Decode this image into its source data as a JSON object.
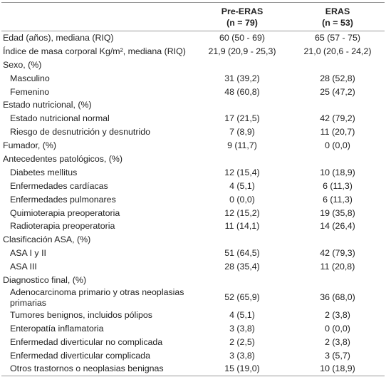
{
  "table": {
    "columns": [
      {
        "name": "Pre-ERAS",
        "n": "(n = 79)"
      },
      {
        "name": "ERAS",
        "n": "(n = 53)"
      }
    ],
    "rows": [
      {
        "label": "Edad (años), mediana (RIQ)",
        "values": [
          "60 (50 - 69)",
          "65 (57 - 75)"
        ]
      },
      {
        "label": "Índice de masa corporal Kg/m², mediana (RIQ)",
        "values": [
          "21,9 (20,9 - 25,3)",
          "21,0 (20,6 - 24,2)"
        ]
      },
      {
        "label": "Sexo, (%)",
        "items": [
          {
            "label": "Masculino",
            "values": [
              "31 (39,2)",
              "28 (52,8)"
            ]
          },
          {
            "label": "Femenino",
            "values": [
              "48 (60,8)",
              "25 (47,2)"
            ]
          }
        ]
      },
      {
        "label": "Estado nutricional, (%)",
        "items": [
          {
            "label": "Estado nutricional normal",
            "values": [
              "17 (21,5)",
              "42 (79,2)"
            ]
          },
          {
            "label": "Riesgo de desnutrición y desnutrido",
            "values": [
              "7 (8,9)",
              "11 (20,7)"
            ]
          }
        ]
      },
      {
        "label": "Fumador, (%)",
        "values": [
          "9 (11,7)",
          "0 (0,0)"
        ]
      },
      {
        "label": "Antecedentes patológicos, (%)",
        "items": [
          {
            "label": "Diabetes mellitus",
            "values": [
              "12 (15,4)",
              "10 (18,9)"
            ]
          },
          {
            "label": "Enfermedades cardíacas",
            "values": [
              "4 (5,1)",
              "6 (11,3)"
            ]
          },
          {
            "label": "Enfermedades pulmonares",
            "values": [
              "0 (0,0)",
              "6 (11,3)"
            ]
          },
          {
            "label": "Quimioterapia preoperatoria",
            "values": [
              "12 (15,2)",
              "19 (35,8)"
            ]
          },
          {
            "label": "Radioterapia preoperatoria",
            "values": [
              "11 (14,1)",
              "14 (26,4)"
            ]
          }
        ]
      },
      {
        "label": "Clasificación ASA, (%)",
        "items": [
          {
            "label": "ASA I y II",
            "values": [
              "51 (64,5)",
              "42 (79,3)"
            ]
          },
          {
            "label": "ASA III",
            "values": [
              "28 (35,4)",
              "11 (20,8)"
            ]
          }
        ]
      },
      {
        "label": "Diagnostico final, (%)",
        "items": [
          {
            "label": "Adenocarcinoma primario y otras neoplasias primarias",
            "values": [
              "52 (65,9)",
              "36 (68,0)"
            ]
          },
          {
            "label": "Tumores benignos, incluidos pólipos",
            "values": [
              "4 (5,1)",
              "2 (3,8)"
            ]
          },
          {
            "label": "Enteropatía inflamatoria",
            "values": [
              "3 (3,8)",
              "0 (0,0)"
            ]
          },
          {
            "label": "Enfermedad diverticular no complicada",
            "values": [
              "2 (2,5)",
              "2 (3,8)"
            ]
          },
          {
            "label": "Enfermedad diverticular complicada",
            "values": [
              "3 (3,8)",
              "3 (5,7)"
            ]
          },
          {
            "label": "Otros trastornos o neoplasias benignas",
            "values": [
              "15 (19,0)",
              "10 (18,9)"
            ]
          }
        ]
      }
    ]
  }
}
